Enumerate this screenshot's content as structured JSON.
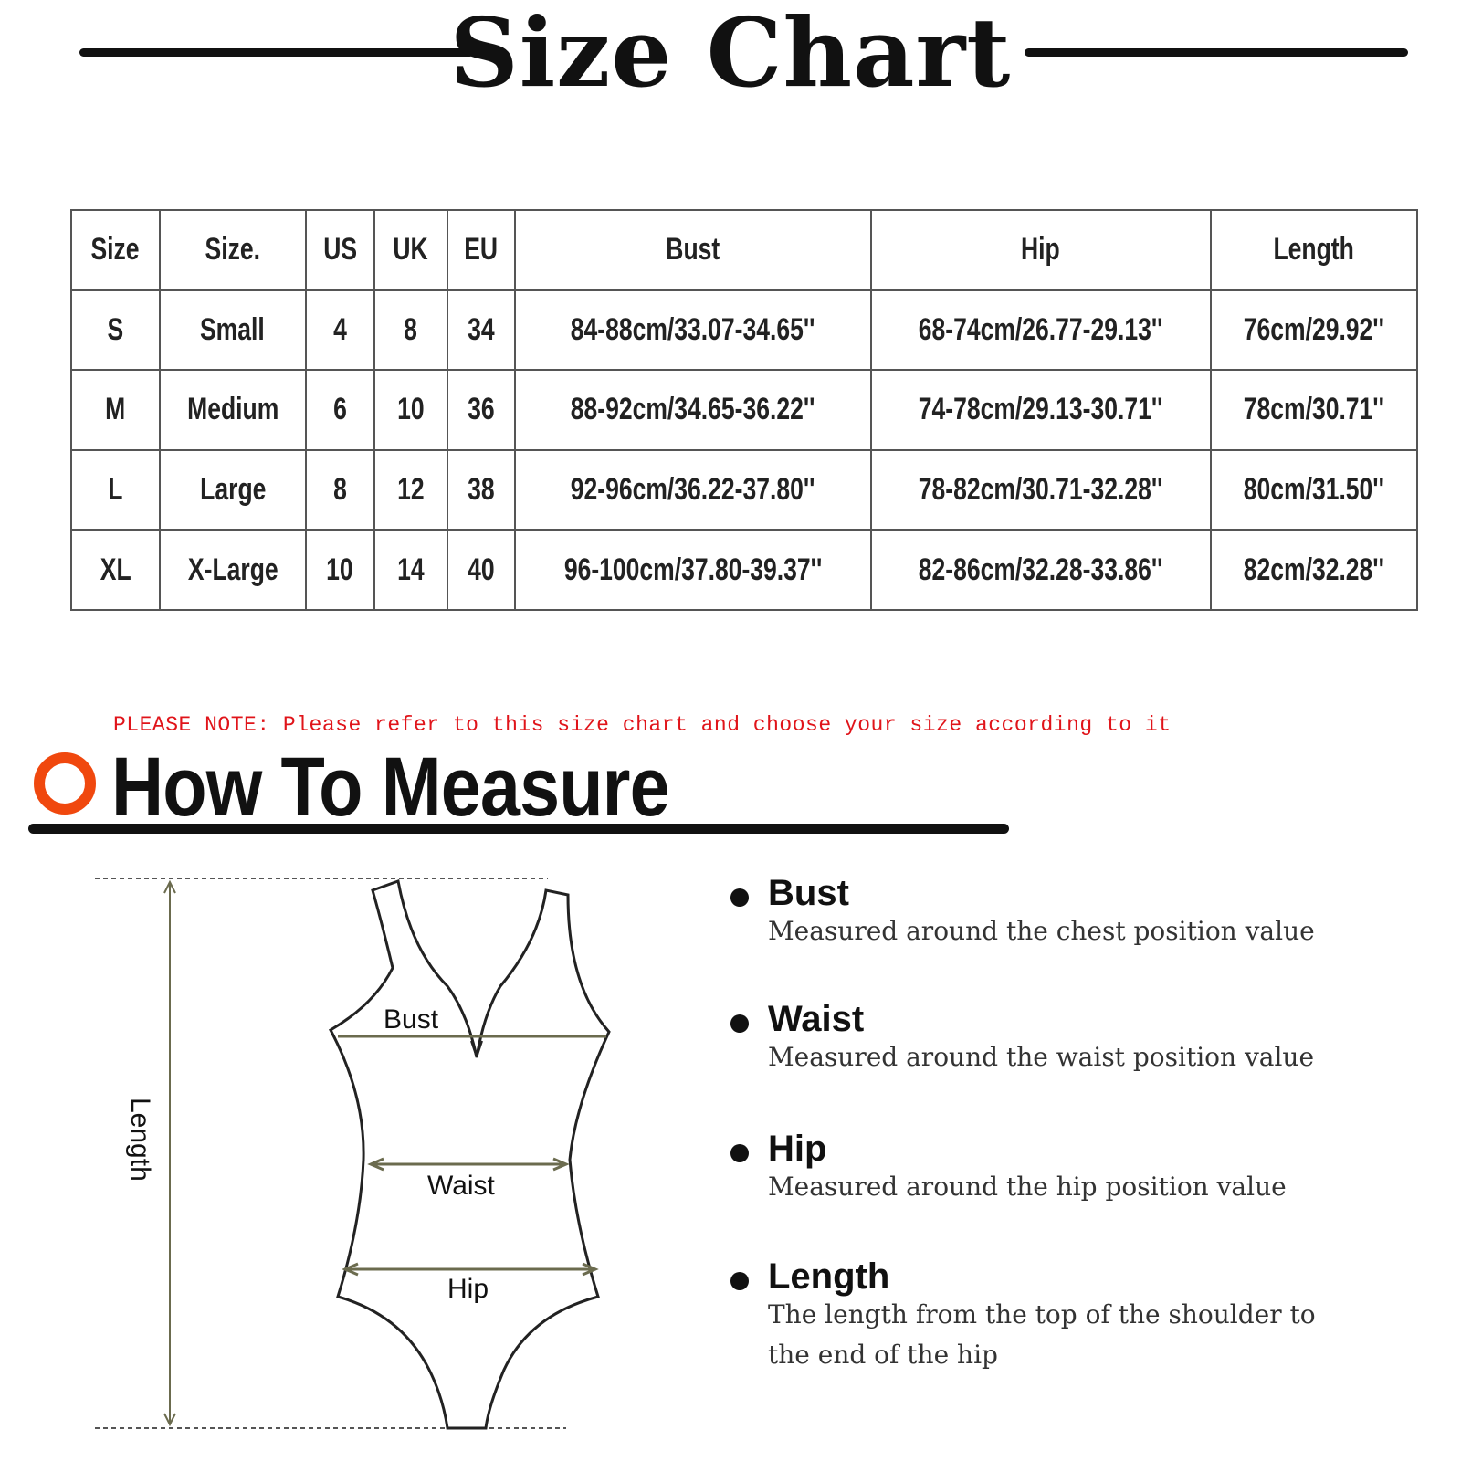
{
  "title": "Size Chart",
  "table": {
    "headers": [
      "Size",
      "Size.",
      "US",
      "UK",
      "EU",
      "Bust",
      "Hip",
      "Length"
    ],
    "rows": [
      [
        "S",
        "Small",
        "4",
        "8",
        "34",
        "84-88cm/33.07-34.65''",
        "68-74cm/26.77-29.13''",
        "76cm/29.92''"
      ],
      [
        "M",
        "Medium",
        "6",
        "10",
        "36",
        "88-92cm/34.65-36.22''",
        "74-78cm/29.13-30.71''",
        "78cm/30.71''"
      ],
      [
        "L",
        "Large",
        "8",
        "12",
        "38",
        "92-96cm/36.22-37.80''",
        "78-82cm/30.71-32.28''",
        "80cm/31.50''"
      ],
      [
        "XL",
        "X-Large",
        "10",
        "14",
        "40",
        "96-100cm/37.80-39.37''",
        "82-86cm/32.28-33.86''",
        "82cm/32.28''"
      ]
    ]
  },
  "note": "PLEASE NOTE: Please refer to this size chart and choose your size according to it",
  "how_to": {
    "title": "How To Measure",
    "accent": "#f0480e"
  },
  "diagram": {
    "bust": "Bust",
    "waist": "Waist",
    "hip": "Hip",
    "length": "Length"
  },
  "measures": [
    {
      "name": "Bust",
      "desc": "Measured around the chest position value"
    },
    {
      "name": "Waist",
      "desc": "Measured around the waist position value"
    },
    {
      "name": "Hip",
      "desc": "Measured around the  hip position value"
    },
    {
      "name": "Length",
      "desc": "The length from the top of the shoulder to the end of the hip"
    }
  ]
}
